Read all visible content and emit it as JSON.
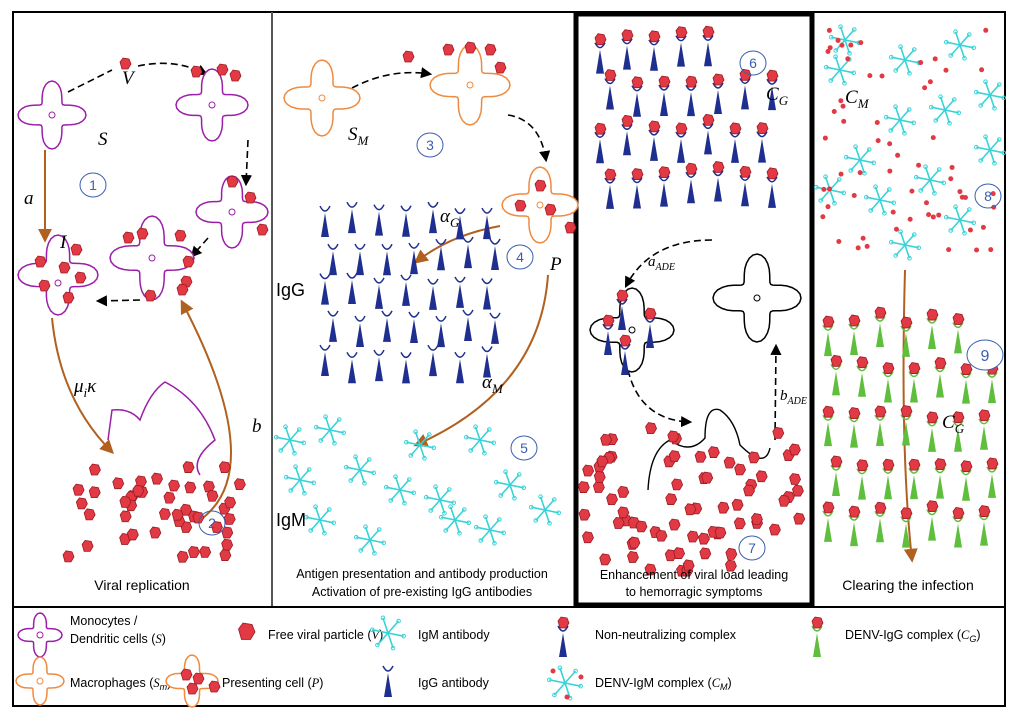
{
  "viral_replication": {
    "virus_label": "V",
    "susceptible_label": "S",
    "rate_a": "a",
    "infected_label": "I",
    "rate_mu": {
      "base": "μ",
      "sub": "i",
      "tail": "κ"
    },
    "rate_b": "b",
    "step_1": "1",
    "step_2": "2",
    "caption": "Viral replication"
  },
  "antibody_production": {
    "macrophage_label": {
      "base": "S",
      "sub": "M"
    },
    "step_3": "3",
    "rate_alpha_g": {
      "base": "α",
      "sub": "G"
    },
    "step_4": "4",
    "presenting_label": "P",
    "igg_label": "IgG",
    "rate_alpha_m": {
      "base": "α",
      "sub": "M"
    },
    "step_5": "5",
    "igm_label": "IgM",
    "caption_1": "Antigen presentation and antibody production",
    "caption_2": "Activation of pre-existing IgG antibodies"
  },
  "enhancement": {
    "step_6": "6",
    "complex_label": {
      "base": "C",
      "sub": "G"
    },
    "rate_a_ade": {
      "base": "a",
      "sub": "ADE"
    },
    "rate_b_ade": {
      "base": "b",
      "sub": "ADE"
    },
    "step_7": "7",
    "caption_1": "Enhancement of viral load leading",
    "caption_2": "to hemorragic symptoms"
  },
  "clearing": {
    "igm_complex_label": {
      "base": "C",
      "sub": "M"
    },
    "step_8": "8",
    "step_9": "9",
    "igg_complex_label": {
      "base": "C",
      "sub": "G"
    },
    "caption": "Clearing the infection"
  },
  "legend": {
    "items": [
      {
        "line1": "Monocytes /",
        "text": "Dendritic cells (",
        "symbol": "S",
        "close": ")"
      },
      {
        "text": "Free viral particle (",
        "symbol": "V",
        "close": ")"
      },
      {
        "text": "IgM antibody"
      },
      {
        "text": "Non-neutralizing complex"
      },
      {
        "text": "DENV-IgG complex (",
        "symbol": "C",
        "sub": "G",
        "close": ")"
      },
      {
        "text": "Macrophages (",
        "symbol": "S",
        "sub": "m",
        "close": ")"
      },
      {
        "text": "Presenting cell (",
        "symbol": "P",
        "close": ")"
      },
      {
        "text": "IgG antibody"
      },
      {
        "text": "DENV-IgM complex (",
        "symbol": "C",
        "sub": "M",
        "close": ")"
      }
    ]
  }
}
